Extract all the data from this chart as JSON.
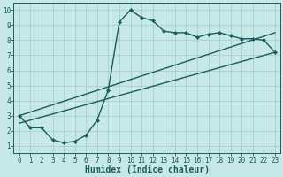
{
  "background_color": "#c6e8e6",
  "grid_color": "#a8cece",
  "line_color": "#1a5c5c",
  "xlim": [
    -0.5,
    23.5
  ],
  "ylim": [
    0.5,
    10.5
  ],
  "xlabel": "Humidex (Indice chaleur)",
  "xticks": [
    0,
    1,
    2,
    3,
    4,
    5,
    6,
    7,
    8,
    9,
    10,
    11,
    12,
    13,
    14,
    15,
    16,
    17,
    18,
    19,
    20,
    21,
    22,
    23
  ],
  "yticks": [
    1,
    2,
    3,
    4,
    5,
    6,
    7,
    8,
    9,
    10
  ],
  "curve1_x": [
    0,
    1,
    2,
    3,
    4,
    5,
    6,
    7,
    8,
    9,
    10,
    11,
    12,
    13,
    14,
    15,
    16,
    17,
    18,
    19,
    20,
    21,
    22,
    23
  ],
  "curve1_y": [
    3.0,
    2.2,
    2.2,
    1.4,
    1.2,
    1.3,
    1.7,
    2.7,
    4.7,
    9.2,
    10.0,
    9.5,
    9.3,
    8.6,
    8.5,
    8.5,
    8.2,
    8.4,
    8.5,
    8.3,
    8.1,
    8.1,
    8.0,
    7.2
  ],
  "curve2_x": [
    0,
    23
  ],
  "curve2_y": [
    3.0,
    8.5
  ],
  "curve3_x": [
    0,
    23
  ],
  "curve3_y": [
    2.5,
    7.2
  ],
  "marker": "D",
  "markersize": 2.2,
  "linewidth": 1.0,
  "tick_fontsize": 5.5,
  "xlabel_fontsize": 7.0
}
